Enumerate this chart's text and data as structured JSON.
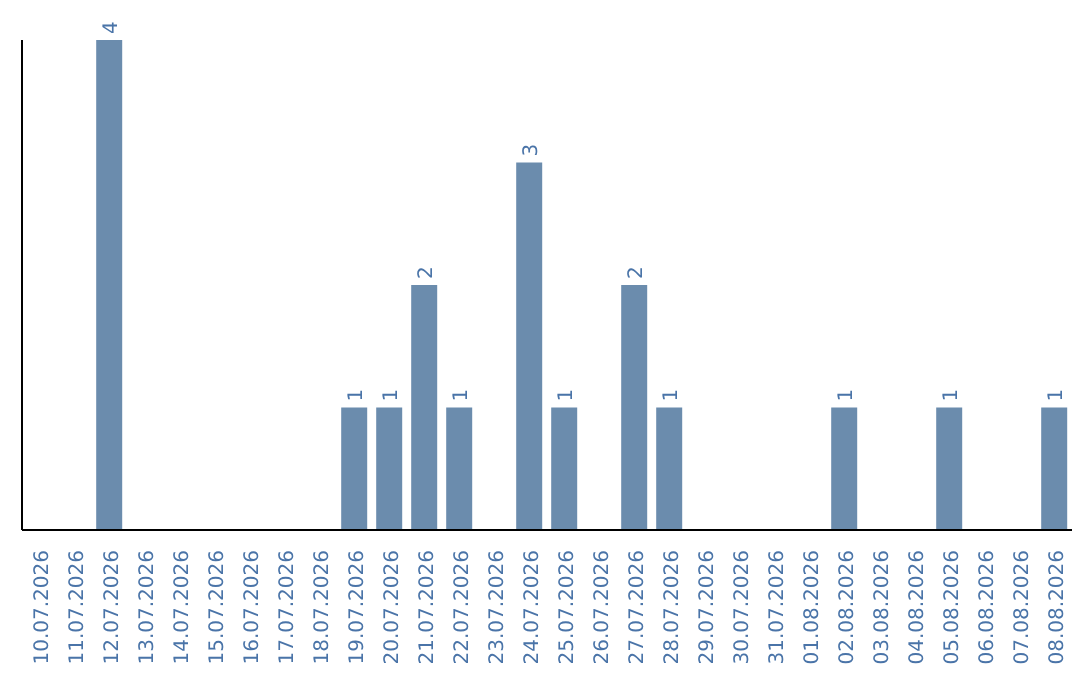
{
  "chart_data": {
    "type": "bar",
    "categories": [
      "10.07.2026",
      "11.07.2026",
      "12.07.2026",
      "13.07.2026",
      "14.07.2026",
      "15.07.2026",
      "16.07.2026",
      "17.07.2026",
      "18.07.2026",
      "19.07.2026",
      "20.07.2026",
      "21.07.2026",
      "22.07.2026",
      "23.07.2026",
      "24.07.2026",
      "25.07.2026",
      "26.07.2026",
      "27.07.2026",
      "28.07.2026",
      "29.07.2026",
      "30.07.2026",
      "31.07.2026",
      "01.08.2026",
      "02.08.2026",
      "03.08.2026",
      "04.08.2026",
      "05.08.2026",
      "06.08.2026",
      "07.08.2026",
      "08.08.2026"
    ],
    "values": [
      0,
      0,
      4,
      0,
      0,
      0,
      0,
      0,
      0,
      1,
      1,
      2,
      1,
      0,
      3,
      1,
      0,
      2,
      1,
      0,
      0,
      0,
      0,
      1,
      0,
      0,
      1,
      0,
      0,
      1
    ],
    "value_labels": [
      null,
      null,
      "4",
      null,
      null,
      null,
      null,
      null,
      null,
      "1",
      "1",
      "2",
      "1",
      null,
      "3",
      "1",
      null,
      "2",
      "1",
      null,
      null,
      null,
      null,
      "1",
      null,
      null,
      "1",
      null,
      null,
      "1"
    ],
    "color": "#6b8cad"
  }
}
